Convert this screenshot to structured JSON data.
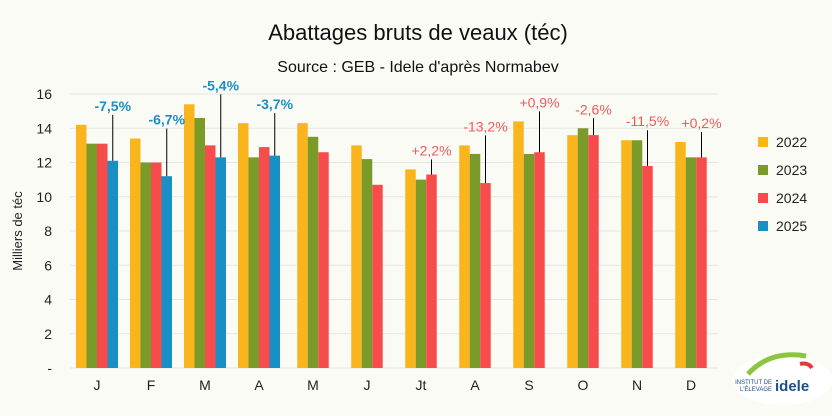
{
  "chart_data": {
    "type": "bar",
    "title": "Abattages bruts de veaux (téc)",
    "subtitle": "Source : GEB - Idele d'après Normabev",
    "ylabel": "Milliers de téc",
    "ylim": [
      0,
      16
    ],
    "yticks": [
      "-",
      "2",
      "4",
      "6",
      "8",
      "10",
      "12",
      "14",
      "16"
    ],
    "grid": true,
    "legend_position": "right",
    "categories": [
      "J",
      "F",
      "M",
      "A",
      "M",
      "J",
      "Jt",
      "A",
      "S",
      "O",
      "N",
      "D"
    ],
    "series": [
      {
        "name": "2022",
        "color": "#f9b51b",
        "values": [
          14.2,
          13.4,
          15.4,
          14.3,
          14.3,
          13.0,
          11.6,
          13.0,
          14.4,
          13.6,
          13.3,
          13.2
        ]
      },
      {
        "name": "2023",
        "color": "#7a9a2a",
        "values": [
          13.1,
          12.0,
          14.6,
          12.3,
          13.5,
          12.2,
          11.0,
          12.5,
          12.5,
          14.0,
          13.3,
          12.3
        ]
      },
      {
        "name": "2024",
        "color": "#f64c4c",
        "values": [
          13.1,
          12.0,
          13.0,
          12.9,
          12.6,
          10.7,
          11.3,
          10.8,
          12.6,
          13.6,
          11.8,
          12.3
        ]
      },
      {
        "name": "2025",
        "color": "#1a8fc6",
        "values": [
          12.1,
          11.2,
          12.3,
          12.4,
          null,
          null,
          null,
          null,
          null,
          null,
          null,
          null
        ]
      }
    ],
    "annotations": [
      {
        "category": 0,
        "text": "-7,5%",
        "style": "blue"
      },
      {
        "category": 1,
        "text": "-6,7%",
        "style": "blue"
      },
      {
        "category": 2,
        "text": "-5,4%",
        "style": "blue"
      },
      {
        "category": 3,
        "text": "-3,7%",
        "style": "blue"
      },
      {
        "category": 6,
        "text": "+2,2%",
        "style": "red"
      },
      {
        "category": 7,
        "text": "-13,2%",
        "style": "red"
      },
      {
        "category": 8,
        "text": "+0,9%",
        "style": "red"
      },
      {
        "category": 9,
        "text": "-2,6%",
        "style": "red"
      },
      {
        "category": 10,
        "text": "-11,5%",
        "style": "red"
      },
      {
        "category": 11,
        "text": "+0,2%",
        "style": "red"
      }
    ]
  },
  "logo": {
    "line1": "INSTITUT DE",
    "line2": "L'ÉLEVAGE",
    "brand": "idele"
  }
}
